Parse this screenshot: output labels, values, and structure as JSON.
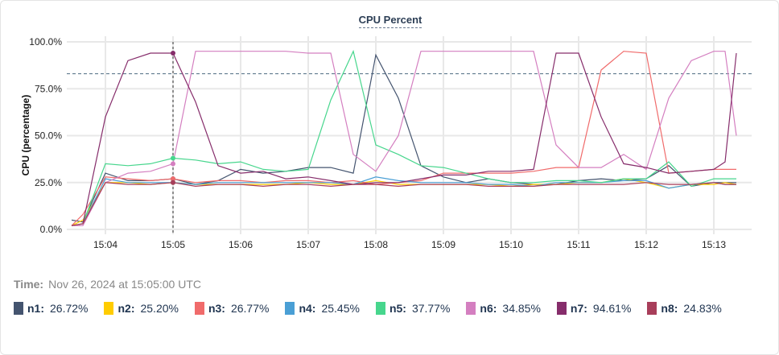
{
  "chart_data": {
    "type": "line",
    "title": "CPU Percent",
    "ylabel": "CPU (percentage)",
    "xlabel": "",
    "ylim": [
      0,
      100
    ],
    "y_ticks": [
      "0.0%",
      "25.0%",
      "50.0%",
      "75.0%",
      "100.0%"
    ],
    "x_ticks": [
      "15:04",
      "15:05",
      "15:06",
      "15:07",
      "15:08",
      "15:09",
      "15:10",
      "15:11",
      "15:12",
      "15:13"
    ],
    "grid": true,
    "threshold": 83,
    "hover_time": "15:05:00",
    "x": [
      "15:03:30",
      "15:03:40",
      "15:04:00",
      "15:04:20",
      "15:04:40",
      "15:05:00",
      "15:05:20",
      "15:05:40",
      "15:06:00",
      "15:06:20",
      "15:06:40",
      "15:07:00",
      "15:07:20",
      "15:07:40",
      "15:08:00",
      "15:08:20",
      "15:08:40",
      "15:09:00",
      "15:09:20",
      "15:09:40",
      "15:10:00",
      "15:10:20",
      "15:10:40",
      "15:11:00",
      "15:11:20",
      "15:11:40",
      "15:12:00",
      "15:12:20",
      "15:12:40",
      "15:13:00",
      "15:13:10",
      "15:13:20"
    ],
    "series": [
      {
        "name": "n1",
        "color": "#44546f",
        "values": [
          5,
          4,
          30,
          26,
          26,
          27,
          24,
          26,
          32,
          30,
          31,
          33,
          33,
          30,
          93,
          70,
          34,
          28,
          25,
          27,
          25,
          24,
          24,
          26,
          27,
          26,
          27,
          34,
          23,
          25,
          25,
          25
        ]
      },
      {
        "name": "n2",
        "color": "#ffcc00",
        "values": [
          2,
          5,
          25,
          25,
          24,
          25,
          24,
          24,
          24,
          24,
          24,
          25,
          24,
          24,
          26,
          24,
          24,
          24,
          24,
          24,
          23,
          24,
          24,
          25,
          25,
          27,
          25,
          22,
          24,
          24,
          25,
          24
        ]
      },
      {
        "name": "n3",
        "color": "#f06b6b",
        "values": [
          2,
          8,
          28,
          27,
          26,
          27,
          25,
          26,
          26,
          25,
          26,
          26,
          25,
          26,
          24,
          25,
          26,
          30,
          30,
          30,
          30,
          31,
          33,
          33,
          85,
          95,
          94,
          30,
          31,
          32,
          32,
          32
        ]
      },
      {
        "name": "n4",
        "color": "#4a9fd5",
        "values": [
          2,
          3,
          27,
          25,
          25,
          25,
          24,
          25,
          25,
          25,
          25,
          25,
          25,
          24,
          28,
          26,
          25,
          25,
          25,
          24,
          24,
          23,
          25,
          25,
          25,
          26,
          26,
          22,
          24,
          25,
          24,
          24
        ]
      },
      {
        "name": "n5",
        "color": "#47d68d",
        "values": [
          2,
          3,
          35,
          34,
          35,
          38,
          37,
          35,
          36,
          32,
          31,
          32,
          69,
          95,
          45,
          40,
          34,
          33,
          30,
          27,
          25,
          25,
          26,
          26,
          25,
          27,
          27,
          36,
          23,
          27,
          27,
          27
        ]
      },
      {
        "name": "n6",
        "color": "#d47fc0",
        "values": [
          2,
          2,
          25,
          30,
          31,
          35,
          95,
          95,
          95,
          95,
          95,
          94,
          94,
          40,
          31,
          50,
          95,
          95,
          95,
          95,
          95,
          95,
          45,
          33,
          33,
          40,
          32,
          70,
          90,
          95,
          95,
          50
        ]
      },
      {
        "name": "n7",
        "color": "#862d6b",
        "values": [
          2,
          3,
          60,
          90,
          94,
          94,
          68,
          34,
          30,
          31,
          27,
          28,
          26,
          24,
          25,
          25,
          27,
          29,
          29,
          31,
          31,
          32,
          94,
          94,
          60,
          35,
          33,
          30,
          31,
          32,
          36,
          94
        ]
      },
      {
        "name": "n8",
        "color": "#a83e5a",
        "values": [
          2,
          3,
          25,
          24,
          24,
          25,
          23,
          24,
          24,
          23,
          24,
          24,
          23,
          24,
          24,
          23,
          24,
          24,
          24,
          23,
          23,
          23,
          24,
          24,
          24,
          24,
          25,
          24,
          24,
          25,
          24,
          24
        ]
      }
    ]
  },
  "footer": {
    "time_label": "Time:",
    "time_value": "Nov 26, 2024 at 15:05:00 UTC",
    "legend": [
      {
        "name": "n1",
        "value": "26.72%"
      },
      {
        "name": "n2",
        "value": "25.20%"
      },
      {
        "name": "n3",
        "value": "26.77%"
      },
      {
        "name": "n4",
        "value": "25.45%"
      },
      {
        "name": "n5",
        "value": "37.77%"
      },
      {
        "name": "n6",
        "value": "34.85%"
      },
      {
        "name": "n7",
        "value": "94.61%"
      },
      {
        "name": "n8",
        "value": "24.83%"
      }
    ]
  }
}
